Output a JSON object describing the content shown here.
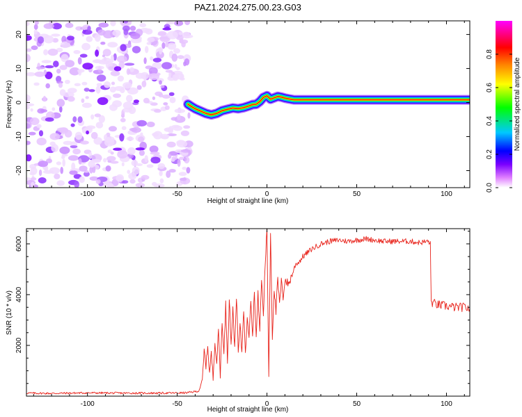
{
  "figure_title": "PAZ1.2024.275.00.23.G03",
  "chart_data": [
    {
      "type": "heatmap",
      "xlabel": "Height of straight line (km)",
      "ylabel": "Frequency (Hz)",
      "xlim": [
        -134,
        113
      ],
      "ylim": [
        -25,
        24
      ],
      "xticks": [
        -100,
        -50,
        0,
        50,
        100
      ],
      "yticks": [
        -20,
        -10,
        0,
        10,
        20
      ],
      "noise_region_x": [
        -134,
        -43
      ],
      "ridge": {
        "x": [
          -44,
          -42,
          -40,
          -37,
          -34,
          -31,
          -28,
          -25,
          -22,
          -19,
          -16,
          -13,
          -10,
          -8,
          -6,
          -4,
          -2,
          0,
          2,
          4,
          6,
          8,
          10,
          12,
          15,
          20,
          30,
          40,
          50,
          60,
          70,
          80,
          90,
          100,
          110,
          113
        ],
        "y": [
          -0.5,
          -1.2,
          -1.8,
          -2.5,
          -3.2,
          -3.6,
          -3.2,
          -2.4,
          -2.0,
          -1.6,
          -1.8,
          -1.5,
          -1.0,
          -0.6,
          -0.5,
          0.3,
          1.5,
          2.0,
          1.0,
          1.4,
          1.8,
          1.6,
          1.3,
          1.1,
          0.8,
          0.8,
          0.8,
          0.8,
          0.8,
          0.8,
          0.8,
          0.8,
          0.8,
          0.8,
          0.8,
          0.8
        ]
      },
      "colorbar": {
        "label": "Normalized spectral amplitude",
        "range": [
          0,
          1
        ],
        "ticks": [
          "0.0",
          "0.2",
          "0.4",
          "0.6",
          "0.8"
        ],
        "colors": [
          "#ffffff",
          "#e080ff",
          "#7a00ff",
          "#0000ff",
          "#00c8ff",
          "#00ff00",
          "#ffff00",
          "#ff8000",
          "#ff0000",
          "#ff00ff"
        ]
      }
    },
    {
      "type": "line",
      "xlabel": "Height of straight line (km)",
      "ylabel": "SNR (10 * v/v)",
      "xlim": [
        -134,
        113
      ],
      "ylim": [
        0,
        6600
      ],
      "xticks": [
        -100,
        -50,
        0,
        50,
        100
      ],
      "yticks": [
        2000,
        4000,
        6000
      ],
      "color": "#e8221a",
      "series": [
        {
          "x": [
            -134,
            -120,
            -100,
            -80,
            -60,
            -45,
            -38,
            -36,
            -35,
            -34,
            -33,
            -32,
            -31,
            -30,
            -29,
            -28,
            -27,
            -26,
            -25,
            -24,
            -23,
            -22,
            -21,
            -20,
            -19,
            -18,
            -17,
            -16,
            -15,
            -14,
            -13,
            -12,
            -11,
            -10,
            -9,
            -8,
            -7,
            -6,
            -5,
            -4,
            -3,
            -2,
            -1,
            0,
            1,
            2,
            3,
            4,
            5,
            6,
            7,
            8,
            9,
            10,
            12,
            14,
            16,
            18,
            20,
            25,
            30,
            35,
            40,
            45,
            50,
            55,
            60,
            65,
            70,
            75,
            80,
            85,
            90,
            91,
            91.5,
            95,
            100,
            105,
            110,
            113
          ],
          "y": [
            120,
            110,
            130,
            120,
            120,
            130,
            200,
            600,
            1800,
            1200,
            2000,
            900,
            1700,
            700,
            2200,
            1300,
            2600,
            800,
            3000,
            1600,
            3600,
            1400,
            3900,
            2100,
            3400,
            1900,
            4000,
            1700,
            2800,
            1700,
            3500,
            1600,
            3200,
            2400,
            3900,
            2300,
            4200,
            2300,
            4000,
            2600,
            4600,
            3200,
            5200,
            6600,
            800,
            6500,
            2300,
            4300,
            3300,
            4600,
            3600,
            4500,
            3900,
            4600,
            4400,
            4800,
            5200,
            5300,
            5500,
            5800,
            6000,
            6100,
            6150,
            6100,
            6150,
            6200,
            6150,
            6100,
            6100,
            6100,
            6100,
            6050,
            6100,
            6000,
            3700,
            3600,
            3550,
            3500,
            3500,
            3450
          ]
        }
      ]
    }
  ]
}
